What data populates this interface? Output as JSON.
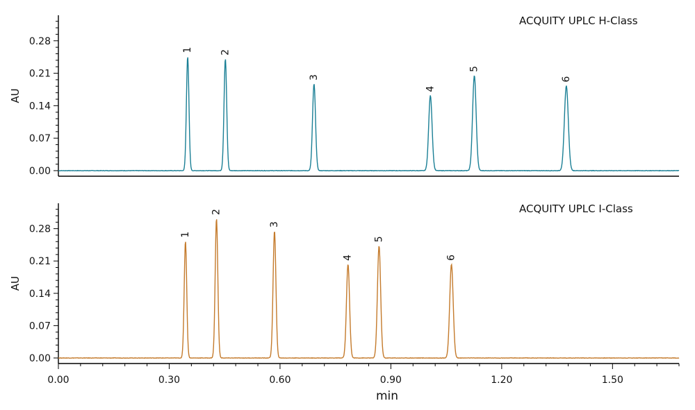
{
  "chart_data": {
    "type": "line",
    "xlabel": "min",
    "xlim": [
      0.0,
      1.68
    ],
    "x_ticks": [
      "0.00",
      "0.30",
      "0.60",
      "0.90",
      "1.20",
      "1.50"
    ],
    "x_tick_values": [
      0.0,
      0.3,
      0.6,
      0.9,
      1.2,
      1.5
    ],
    "panels": [
      {
        "title": "ACQUITY UPLC H-Class",
        "ylabel": "AU",
        "ylim": [
          -0.012,
          0.335
        ],
        "y_ticks": [
          "0.00",
          "0.07",
          "0.14",
          "0.21",
          "0.28"
        ],
        "y_tick_values": [
          0.0,
          0.07,
          0.14,
          0.21,
          0.28
        ],
        "color": "#1a7f95",
        "peaks": [
          {
            "label": "1",
            "x": 0.35,
            "y": 0.246
          },
          {
            "label": "2",
            "x": 0.452,
            "y": 0.241
          },
          {
            "label": "3",
            "x": 0.692,
            "y": 0.187
          },
          {
            "label": "4",
            "x": 1.007,
            "y": 0.162
          },
          {
            "label": "5",
            "x": 1.126,
            "y": 0.205
          },
          {
            "label": "6",
            "x": 1.375,
            "y": 0.183
          }
        ],
        "baseline": 0.0
      },
      {
        "title": "ACQUITY UPLC I-Class",
        "ylabel": "AU",
        "ylim": [
          -0.012,
          0.335
        ],
        "y_ticks": [
          "0.00",
          "0.07",
          "0.14",
          "0.21",
          "0.28"
        ],
        "y_tick_values": [
          0.0,
          0.07,
          0.14,
          0.21,
          0.28
        ],
        "color": "#c47a2b",
        "peaks": [
          {
            "label": "1",
            "x": 0.344,
            "y": 0.253
          },
          {
            "label": "2",
            "x": 0.428,
            "y": 0.302
          },
          {
            "label": "3",
            "x": 0.585,
            "y": 0.275
          },
          {
            "label": "4",
            "x": 0.784,
            "y": 0.203
          },
          {
            "label": "5",
            "x": 0.868,
            "y": 0.243
          },
          {
            "label": "6",
            "x": 1.064,
            "y": 0.203
          }
        ],
        "baseline": 0.0
      }
    ]
  }
}
